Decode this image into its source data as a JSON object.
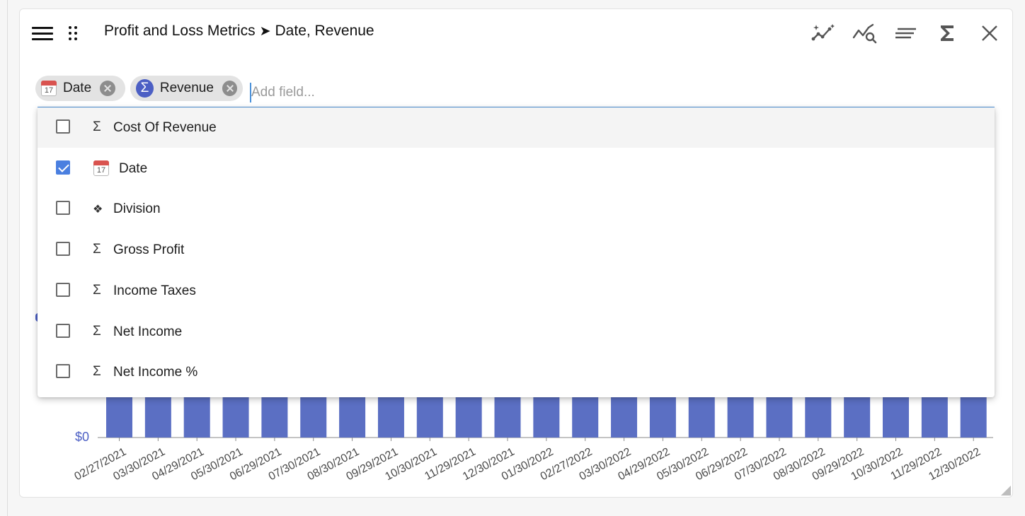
{
  "header": {
    "title_source": "Profit and Loss Metrics",
    "title_arrow": "➤",
    "title_fields": "Date, Revenue"
  },
  "toolbar_icons": [
    "sparkle-trend-icon",
    "trend-search-icon",
    "text-lines-icon",
    "sigma-icon",
    "close-icon"
  ],
  "selected_fields": [
    {
      "label": "Date",
      "icon": "calendar-icon",
      "cal_day": "17"
    },
    {
      "label": "Revenue",
      "icon": "sigma-icon",
      "badge": "Σ"
    }
  ],
  "field_input": {
    "placeholder": "Add field...",
    "value": ""
  },
  "dropdown": {
    "options": [
      {
        "label": "Cost Of Revenue",
        "icon": "sigma-icon",
        "glyph": "Σ",
        "checked": false,
        "highlighted": true
      },
      {
        "label": "Date",
        "icon": "calendar-icon",
        "glyph": "17",
        "checked": true,
        "highlighted": false
      },
      {
        "label": "Division",
        "icon": "diamond-icon",
        "glyph": "❖",
        "checked": false,
        "highlighted": false
      },
      {
        "label": "Gross Profit",
        "icon": "sigma-icon",
        "glyph": "Σ",
        "checked": false,
        "highlighted": false
      },
      {
        "label": "Income Taxes",
        "icon": "sigma-icon",
        "glyph": "Σ",
        "checked": false,
        "highlighted": false
      },
      {
        "label": "Net Income",
        "icon": "sigma-icon",
        "glyph": "Σ",
        "checked": false,
        "highlighted": false
      },
      {
        "label": "Net Income %",
        "icon": "sigma-icon",
        "glyph": "Σ",
        "checked": false,
        "highlighted": false
      }
    ]
  },
  "chart_data": {
    "type": "bar",
    "color": "#5b6fc3",
    "y_tick_label": "$0",
    "categories": [
      "02/27/2021",
      "03/30/2021",
      "04/29/2021",
      "05/30/2021",
      "06/29/2021",
      "07/30/2021",
      "08/30/2021",
      "09/29/2021",
      "10/30/2021",
      "11/29/2021",
      "12/30/2021",
      "01/30/2022",
      "02/27/2022",
      "03/30/2022",
      "04/29/2022",
      "05/30/2022",
      "06/29/2022",
      "07/30/2022",
      "08/30/2022",
      "09/29/2022",
      "10/30/2022",
      "11/29/2022",
      "12/30/2022"
    ]
  }
}
